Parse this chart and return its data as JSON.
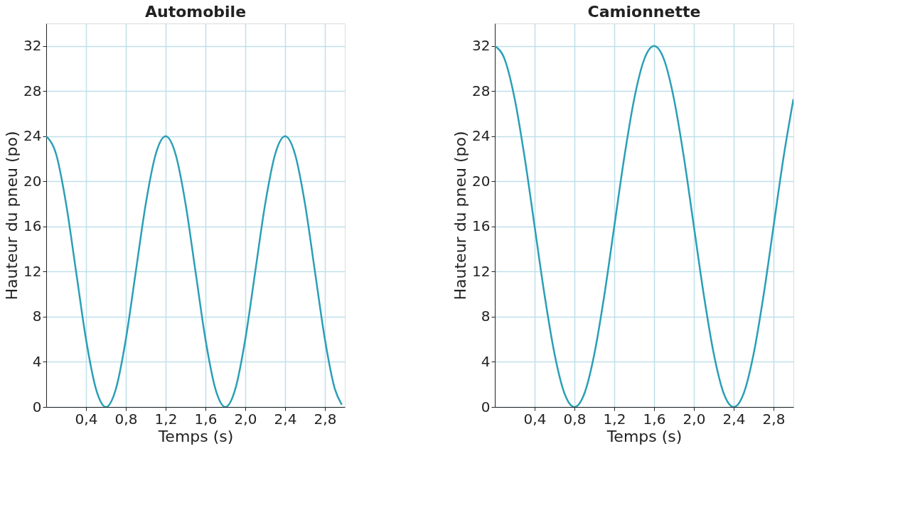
{
  "chart_data": [
    {
      "type": "line",
      "title": "Automobile",
      "xlabel": "Temps (s)",
      "ylabel": "Hauteur du pneu (po)",
      "x": [
        0,
        0.1,
        0.2,
        0.3,
        0.4,
        0.5,
        0.6,
        0.7,
        0.8,
        0.9,
        1.0,
        1.1,
        1.2,
        1.3,
        1.4,
        1.5,
        1.6,
        1.7,
        1.8,
        1.9,
        2.0,
        2.1,
        2.2,
        2.3,
        2.4,
        2.5,
        2.6,
        2.7,
        2.8,
        2.9,
        2.97
      ],
      "series": [
        {
          "color": "#2a9fb6",
          "values": [
            24,
            22.4,
            18,
            12,
            6,
            1.6,
            0,
            1.6,
            6,
            12,
            18,
            22.4,
            24,
            22.4,
            18,
            12,
            6,
            1.6,
            0,
            1.6,
            6,
            12,
            18,
            22.4,
            24,
            22.4,
            18,
            12,
            6,
            1.6,
            0.2
          ]
        }
      ],
      "xlim": [
        0,
        3.0
      ],
      "ylim": [
        0,
        34
      ],
      "xticks": [
        {
          "value": 0.4,
          "label": "0,4"
        },
        {
          "value": 0.8,
          "label": "0,8"
        },
        {
          "value": 1.2,
          "label": "1,2"
        },
        {
          "value": 1.6,
          "label": "1,6"
        },
        {
          "value": 2.0,
          "label": "2,0"
        },
        {
          "value": 2.4,
          "label": "2,4"
        },
        {
          "value": 2.8,
          "label": "2,8"
        }
      ],
      "yticks": [
        0,
        4,
        8,
        12,
        16,
        20,
        24,
        28,
        32
      ],
      "grid": true,
      "marker": "none",
      "line_style": "solid"
    },
    {
      "type": "line",
      "title": "Camionnette",
      "xlabel": "Temps (s)",
      "ylabel": "Hauteur du pneu (po)",
      "x": [
        0,
        0.1,
        0.2,
        0.3,
        0.4,
        0.5,
        0.6,
        0.7,
        0.8,
        0.9,
        1.0,
        1.1,
        1.2,
        1.3,
        1.4,
        1.5,
        1.6,
        1.7,
        1.8,
        1.9,
        2.0,
        2.1,
        2.2,
        2.3,
        2.4,
        2.5,
        2.6,
        2.7,
        2.8,
        2.9,
        3.0
      ],
      "series": [
        {
          "color": "#2a9fb6",
          "values": [
            32,
            30.8,
            27.3,
            22.1,
            16,
            9.9,
            4.7,
            1.2,
            0,
            1.2,
            4.7,
            9.9,
            16,
            22.1,
            27.3,
            30.8,
            32,
            30.8,
            27.3,
            22.1,
            16,
            9.9,
            4.7,
            1.2,
            0,
            1.2,
            4.7,
            9.9,
            16,
            22.1,
            27.3
          ]
        }
      ],
      "xlim": [
        0,
        3.0
      ],
      "ylim": [
        0,
        34
      ],
      "xticks": [
        {
          "value": 0.4,
          "label": "0,4"
        },
        {
          "value": 0.8,
          "label": "0,8"
        },
        {
          "value": 1.2,
          "label": "1,2"
        },
        {
          "value": 1.6,
          "label": "1,6"
        },
        {
          "value": 2.0,
          "label": "2,0"
        },
        {
          "value": 2.4,
          "label": "2,4"
        },
        {
          "value": 2.8,
          "label": "2,8"
        }
      ],
      "yticks": [
        0,
        4,
        8,
        12,
        16,
        20,
        24,
        28,
        32
      ],
      "grid": true,
      "marker": "none",
      "line_style": "solid"
    }
  ]
}
